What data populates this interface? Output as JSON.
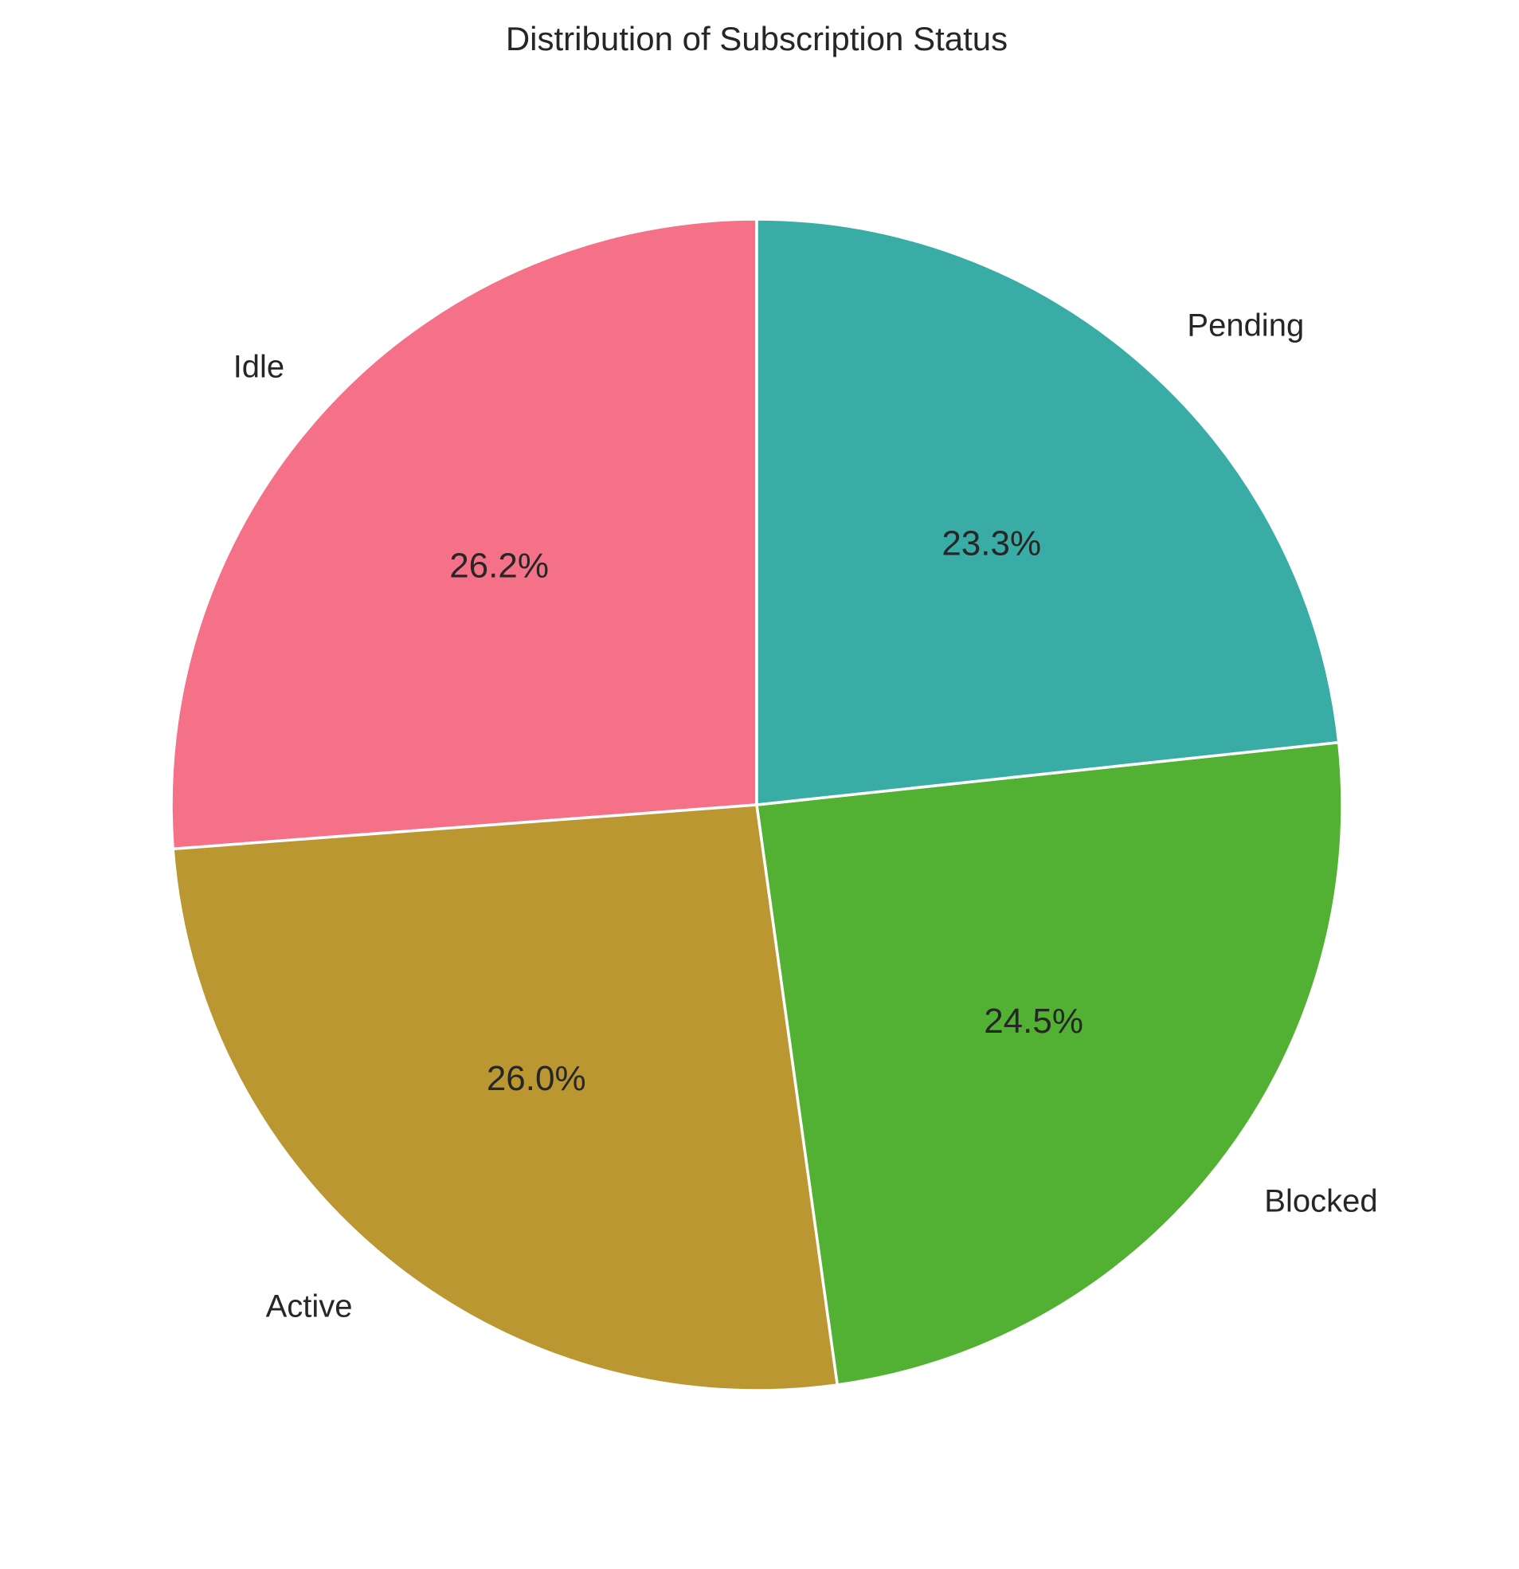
{
  "chart_data": {
    "type": "pie",
    "title": "Distribution of Subscription Status",
    "start_angle_deg": 90,
    "direction": "counterclockwise",
    "slices": [
      {
        "label": "Idle",
        "value": 26.2,
        "pct_label": "26.2%",
        "color": "#f57187"
      },
      {
        "label": "Active",
        "value": 26.0,
        "pct_label": "26.0%",
        "color": "#ba9731"
      },
      {
        "label": "Blocked",
        "value": 24.5,
        "pct_label": "24.5%",
        "color": "#52b132"
      },
      {
        "label": "Pending",
        "value": 23.3,
        "pct_label": "23.3%",
        "color": "#38aca5"
      }
    ]
  }
}
